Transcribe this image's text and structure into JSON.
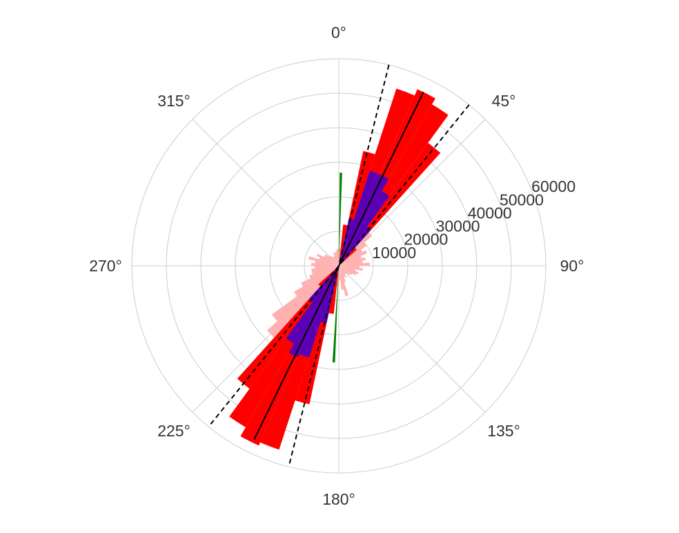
{
  "chart_data": {
    "type": "polar-bar",
    "title": "",
    "theta_direction": "clockwise",
    "theta_zero": "top",
    "r_max": 60000,
    "grid": true,
    "angle_ticks": [
      {
        "deg": 0,
        "label": "0°"
      },
      {
        "deg": 45,
        "label": "45°"
      },
      {
        "deg": 90,
        "label": "90°"
      },
      {
        "deg": 135,
        "label": "135°"
      },
      {
        "deg": 180,
        "label": "180°"
      },
      {
        "deg": 225,
        "label": "225°"
      },
      {
        "deg": 270,
        "label": "270°"
      },
      {
        "deg": 315,
        "label": "315°"
      }
    ],
    "radial_ticks": [
      {
        "value": 10000,
        "label": "10000"
      },
      {
        "value": 20000,
        "label": "20000"
      },
      {
        "value": 30000,
        "label": "30000"
      },
      {
        "value": 40000,
        "label": "40000"
      },
      {
        "value": 50000,
        "label": "50000"
      },
      {
        "value": 60000,
        "label": "60000"
      }
    ],
    "colors": {
      "grid": "#cccccc",
      "pink": "#ffb0b0",
      "red": "#ff0000",
      "purple": "#5a00b4",
      "green": "#008000",
      "line": "#000000"
    },
    "series": [
      {
        "color": "pink",
        "width_deg": 6,
        "bins": [
          {
            "theta": 3,
            "r": 5000
          },
          {
            "theta": 9,
            "r": 12000
          },
          {
            "theta": 15,
            "r": 18000
          },
          {
            "theta": 21,
            "r": 31000
          },
          {
            "theta": 27,
            "r": 26000
          },
          {
            "theta": 33,
            "r": 24000
          },
          {
            "theta": 39,
            "r": 17000
          },
          {
            "theta": 45,
            "r": 13000
          },
          {
            "theta": 51,
            "r": 10000
          },
          {
            "theta": 57,
            "r": 8000
          },
          {
            "theta": 63,
            "r": 9000
          },
          {
            "theta": 69,
            "r": 7000
          },
          {
            "theta": 75,
            "r": 8000
          },
          {
            "theta": 81,
            "r": 7000
          },
          {
            "theta": 87,
            "r": 9000
          },
          {
            "theta": 93,
            "r": 6000
          },
          {
            "theta": 99,
            "r": 7000
          },
          {
            "theta": 105,
            "r": 5000
          },
          {
            "theta": 111,
            "r": 6000
          },
          {
            "theta": 117,
            "r": 5500
          },
          {
            "theta": 123,
            "r": 4500
          },
          {
            "theta": 129,
            "r": 4000
          },
          {
            "theta": 135,
            "r": 3000
          },
          {
            "theta": 141,
            "r": 3000
          },
          {
            "theta": 147,
            "r": 4000
          },
          {
            "theta": 153,
            "r": 3500
          },
          {
            "theta": 159,
            "r": 5000
          },
          {
            "theta": 165,
            "r": 9000
          },
          {
            "theta": 171,
            "r": 7000
          },
          {
            "theta": 177,
            "r": 4000
          },
          {
            "theta": 183,
            "r": 6000
          },
          {
            "theta": 189,
            "r": 14000
          },
          {
            "theta": 195,
            "r": 35000
          },
          {
            "theta": 201,
            "r": 44000
          },
          {
            "theta": 207,
            "r": 47000
          },
          {
            "theta": 213,
            "r": 47000
          },
          {
            "theta": 219,
            "r": 40000
          },
          {
            "theta": 225,
            "r": 28000
          },
          {
            "theta": 231,
            "r": 24000
          },
          {
            "theta": 237,
            "r": 15000
          },
          {
            "theta": 243,
            "r": 12000
          },
          {
            "theta": 249,
            "r": 9000
          },
          {
            "theta": 255,
            "r": 8000
          },
          {
            "theta": 261,
            "r": 8000
          },
          {
            "theta": 267,
            "r": 7000
          },
          {
            "theta": 273,
            "r": 8000
          },
          {
            "theta": 279,
            "r": 7000
          },
          {
            "theta": 285,
            "r": 9000
          },
          {
            "theta": 291,
            "r": 6000
          },
          {
            "theta": 297,
            "r": 7000
          },
          {
            "theta": 303,
            "r": 5000
          },
          {
            "theta": 309,
            "r": 5000
          },
          {
            "theta": 315,
            "r": 4000
          },
          {
            "theta": 321,
            "r": 3500
          },
          {
            "theta": 327,
            "r": 3000
          },
          {
            "theta": 333,
            "r": 3000
          },
          {
            "theta": 339,
            "r": 4000
          },
          {
            "theta": 345,
            "r": 4000
          },
          {
            "theta": 351,
            "r": 4500
          },
          {
            "theta": 357,
            "r": 5000
          }
        ]
      },
      {
        "color": "red",
        "width_deg": 6,
        "bins": [
          {
            "theta": 9,
            "r": 12000
          },
          {
            "theta": 15,
            "r": 34000
          },
          {
            "theta": 21,
            "r": 54000
          },
          {
            "theta": 27,
            "r": 56000
          },
          {
            "theta": 33,
            "r": 54000
          },
          {
            "theta": 39,
            "r": 44000
          },
          {
            "theta": 45,
            "r": 7000
          },
          {
            "theta": 189,
            "r": 14000
          },
          {
            "theta": 195,
            "r": 41000
          },
          {
            "theta": 201,
            "r": 56000
          },
          {
            "theta": 207,
            "r": 57000
          },
          {
            "theta": 213,
            "r": 54000
          },
          {
            "theta": 219,
            "r": 44000
          },
          {
            "theta": 225,
            "r": 8000
          }
        ]
      },
      {
        "color": "purple",
        "width_deg": 6,
        "bins": [
          {
            "theta": 15,
            "r": 14000
          },
          {
            "theta": 21,
            "r": 29000
          },
          {
            "theta": 27,
            "r": 29000
          },
          {
            "theta": 33,
            "r": 25000
          },
          {
            "theta": 39,
            "r": 14000
          },
          {
            "theta": 195,
            "r": 17000
          },
          {
            "theta": 201,
            "r": 28000
          },
          {
            "theta": 207,
            "r": 29000
          },
          {
            "theta": 213,
            "r": 26000
          },
          {
            "theta": 219,
            "r": 13000
          }
        ]
      },
      {
        "color": "green",
        "width_deg": 1.5,
        "bins": [
          {
            "theta": 1.3,
            "r": 27000
          },
          {
            "theta": 183,
            "r": 28000
          }
        ]
      }
    ],
    "lines": [
      {
        "style": "solid",
        "theta": 26,
        "r_max": 56000
      },
      {
        "style": "dashed",
        "theta": 14,
        "r_max": 60000
      },
      {
        "style": "dashed",
        "theta": 39,
        "r_max": 60000
      }
    ]
  }
}
